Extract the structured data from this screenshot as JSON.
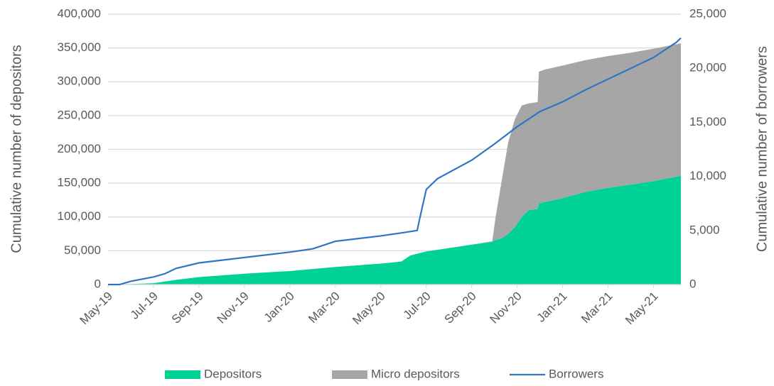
{
  "chart_data": {
    "type": "area",
    "y_label": "Cumulative number of depositors",
    "y2_label": "Cumulative number of borrowers",
    "x": [
      0,
      1,
      2,
      3,
      4,
      6,
      8,
      10,
      12,
      12.9,
      13.3,
      14,
      15,
      16,
      16.9,
      17.05,
      17.3,
      17.6,
      17.9,
      18.2,
      18.5,
      18.9,
      18.95,
      19.2,
      20,
      21,
      22,
      23,
      24,
      25.2
    ],
    "xlim": [
      0,
      25.2
    ],
    "xticks": [
      {
        "value": 0,
        "label": "May-19"
      },
      {
        "value": 2,
        "label": "Jul-19"
      },
      {
        "value": 4,
        "label": "Sep-19"
      },
      {
        "value": 6,
        "label": "Nov-19"
      },
      {
        "value": 8,
        "label": "Jan-20"
      },
      {
        "value": 10,
        "label": "Mar-20"
      },
      {
        "value": 12,
        "label": "May-20"
      },
      {
        "value": 14,
        "label": "Jul-20"
      },
      {
        "value": 16,
        "label": "Sep-20"
      },
      {
        "value": 18,
        "label": "Nov-20"
      },
      {
        "value": 20,
        "label": "Jan-21"
      },
      {
        "value": 22,
        "label": "Mar-21"
      },
      {
        "value": 24,
        "label": "May-21"
      }
    ],
    "ylim": [
      0,
      400000
    ],
    "yticks": [
      0,
      {
        "value": 50000,
        "label": "50,000"
      },
      {
        "value": 100000,
        "label": "100,000"
      },
      {
        "value": 150000,
        "label": "150,000"
      },
      {
        "value": 200000,
        "label": "200,000"
      },
      {
        "value": 250000,
        "label": "250,000"
      },
      {
        "value": 300000,
        "label": "300,000"
      },
      {
        "value": 350000,
        "label": "350,000"
      },
      {
        "value": 400000,
        "label": "400,000"
      }
    ],
    "y2lim": [
      0,
      25000
    ],
    "y2ticks": [
      0,
      {
        "value": 5000,
        "label": "5,000"
      },
      {
        "value": 10000,
        "label": "10,000"
      },
      {
        "value": 15000,
        "label": "15,000"
      },
      {
        "value": 20000,
        "label": "20,000"
      },
      {
        "value": 25000,
        "label": "25,000"
      }
    ],
    "grid": true,
    "legend": "bottom",
    "series": [
      {
        "name": "Depositors",
        "color": "#00d296",
        "values": [
          0,
          800,
          2000,
          7000,
          11000,
          16000,
          20000,
          26000,
          31000,
          34000,
          43000,
          49000,
          54000,
          59000,
          63000,
          66000,
          68000,
          75000,
          85000,
          100000,
          110000,
          112000,
          120000,
          122000,
          128000,
          137000,
          143000,
          148000,
          153000,
          161000
        ]
      },
      {
        "name": "Micro depositors",
        "color": "#a6a6a6",
        "values": [
          0,
          0,
          0,
          0,
          0,
          0,
          0,
          0,
          0,
          0,
          0,
          0,
          0,
          0,
          1000,
          34000,
          82000,
          135000,
          160000,
          165000,
          158000,
          158000,
          195000,
          196000,
          196000,
          195000,
          195000,
          195000,
          196000,
          196000
        ]
      },
      {
        "name": "Borrowers",
        "color": "#2e75c6",
        "axis": "y2",
        "type": "line",
        "x": [
          0,
          0.5,
          1,
          2,
          2.5,
          3,
          4,
          6,
          8,
          9,
          10,
          12,
          13,
          13.6,
          13.7,
          14,
          14.5,
          16,
          17,
          18,
          19,
          20,
          21,
          22,
          23,
          24,
          25,
          25.2
        ],
        "values": [
          0,
          0,
          300,
          700,
          1000,
          1500,
          2000,
          2500,
          3000,
          3300,
          4000,
          4500,
          4800,
          5000,
          6000,
          8800,
          9800,
          11500,
          13000,
          14600,
          16000,
          16900,
          18000,
          19000,
          20000,
          21000,
          22400,
          22800
        ]
      }
    ]
  }
}
